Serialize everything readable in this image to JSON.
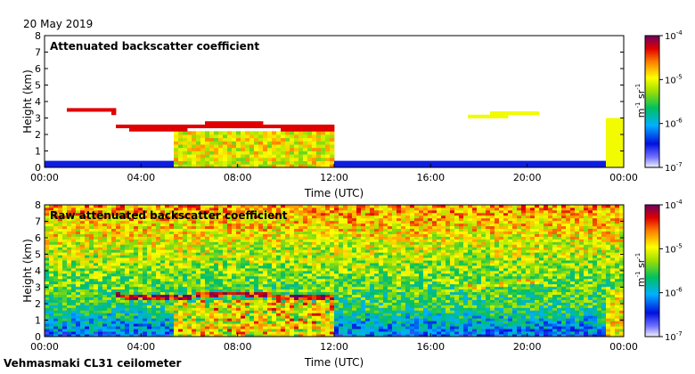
{
  "date": "20 May 2019",
  "footer": "Vehmasmaki CL31 ceilometer",
  "chart_data": [
    {
      "type": "heatmap",
      "title": "Attenuated backscatter coefficient",
      "xlabel": "Time (UTC)",
      "ylabel": "Height (km)",
      "xlim": [
        0,
        24
      ],
      "ylim": [
        0,
        8
      ],
      "xticks": [
        "00:00",
        "04:00",
        "08:00",
        "12:00",
        "16:00",
        "20:00",
        "00:00"
      ],
      "yticks": [
        "0",
        "1",
        "2",
        "3",
        "4",
        "5",
        "6",
        "7",
        "8"
      ],
      "colorbar": {
        "scale": "log",
        "range": [
          1e-07,
          0.0001
        ],
        "ticks": [
          {
            "base": "10",
            "exp": "-4"
          },
          {
            "base": "10",
            "exp": "-5"
          },
          {
            "base": "10",
            "exp": "-6"
          },
          {
            "base": "10",
            "exp": "-7"
          }
        ],
        "unit": {
          "m": "m",
          "m_exp": "-1",
          "sr": "sr",
          "sr_exp": "-1"
        }
      },
      "features": [
        {
          "name": "boundary layer",
          "t_start": 0,
          "t_end": 24,
          "h_top": 0.4,
          "level": -6.5
        },
        {
          "name": "cloud layer",
          "t_start": 5.3,
          "t_end": 12.0,
          "h_top": 2.2,
          "level": -5.0
        },
        {
          "name": "cloud top",
          "t_start": 3.0,
          "t_end": 12.0,
          "h_center": 2.5,
          "level": -4.3
        },
        {
          "name": "upper layer",
          "t_start": 1.0,
          "t_end": 3.0,
          "h_center": 3.4,
          "level": -4.3
        },
        {
          "name": "layer",
          "t_start": 17.5,
          "t_end": 20.5,
          "h_center": 3.2,
          "level": -5.0
        },
        {
          "name": "rain",
          "t_start": 23.3,
          "t_end": 24,
          "h_top": 3.0,
          "level": -5.0
        }
      ]
    },
    {
      "type": "heatmap",
      "title": "Raw attenuated backscatter coefficient",
      "xlabel": "Time (UTC)",
      "ylabel": "Height (km)",
      "xlim": [
        0,
        24
      ],
      "ylim": [
        0,
        8
      ],
      "xticks": [
        "00:00",
        "04:00",
        "08:00",
        "12:00",
        "16:00",
        "20:00",
        "00:00"
      ],
      "yticks": [
        "0",
        "1",
        "2",
        "3",
        "4",
        "5",
        "6",
        "7",
        "8"
      ],
      "colorbar": {
        "scale": "log",
        "range": [
          1e-07,
          0.0001
        ],
        "ticks": [
          {
            "base": "10",
            "exp": "-4"
          },
          {
            "base": "10",
            "exp": "-5"
          },
          {
            "base": "10",
            "exp": "-6"
          },
          {
            "base": "10",
            "exp": "-7"
          }
        ],
        "unit": {
          "m": "m",
          "m_exp": "-1",
          "sr": "sr",
          "sr_exp": "-1"
        }
      },
      "features": [
        {
          "name": "noise background",
          "t_start": 0,
          "t_end": 24,
          "h_top": 8,
          "level": -5.0
        },
        {
          "name": "cloud layer",
          "t_start": 5.3,
          "t_end": 12.0,
          "h_top": 2.2,
          "level": -5.0
        },
        {
          "name": "cloud top",
          "t_start": 3.0,
          "t_end": 12.0,
          "h_center": 2.5,
          "level": -4.3
        },
        {
          "name": "layer",
          "t_start": 17.5,
          "t_end": 20.5,
          "h_center": 3.2,
          "level": -5.0
        },
        {
          "name": "rain",
          "t_start": 23.3,
          "t_end": 24,
          "h_top": 3.0,
          "level": -5.0
        }
      ]
    }
  ]
}
